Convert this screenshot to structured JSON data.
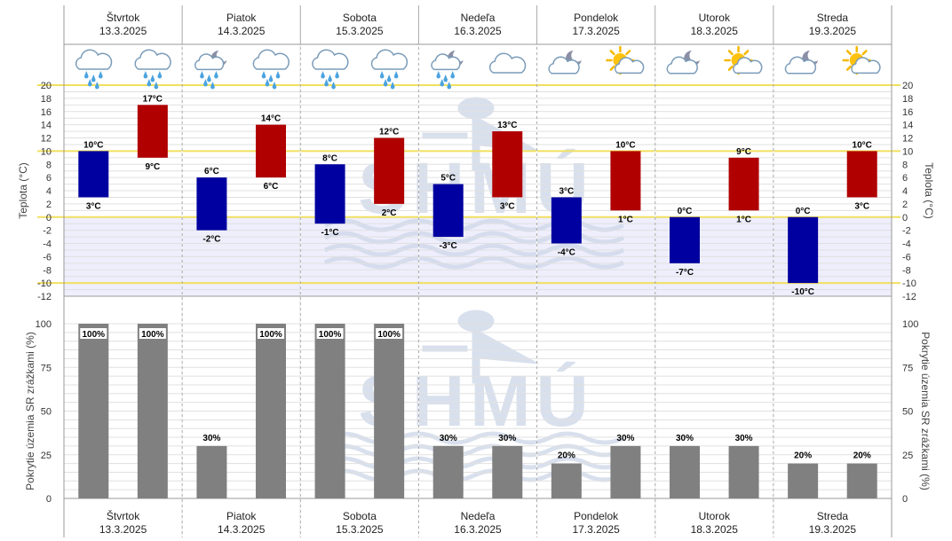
{
  "days": [
    {
      "name": "Štvrtok",
      "date": "13.3.2025",
      "icons": [
        "rain-cloud-icon",
        "rain-cloud-icon"
      ]
    },
    {
      "name": "Piatok",
      "date": "14.3.2025",
      "icons": [
        "moon-cloud-rain-icon",
        "rain-cloud-icon"
      ]
    },
    {
      "name": "Sobota",
      "date": "15.3.2025",
      "icons": [
        "rain-cloud-icon",
        "rain-cloud-icon"
      ]
    },
    {
      "name": "Nedeľa",
      "date": "16.3.2025",
      "icons": [
        "moon-cloud-rain-icon",
        "cloud-icon"
      ]
    },
    {
      "name": "Pondelok",
      "date": "17.3.2025",
      "icons": [
        "moon-cloud-icon",
        "sun-cloud-icon"
      ]
    },
    {
      "name": "Utorok",
      "date": "18.3.2025",
      "icons": [
        "moon-cloud-icon",
        "sun-cloud-icon"
      ]
    },
    {
      "name": "Streda",
      "date": "19.3.2025",
      "icons": [
        "moon-cloud-icon",
        "sun-cloud-icon"
      ]
    }
  ],
  "watermark": "SHMÚ",
  "colors": {
    "night_bar": "#0000a0",
    "day_bar": "#b00000",
    "coverage_bar": "#808080",
    "highlight_line": "#f0e060",
    "negative_band": "#eeeefc",
    "watermark": "#cdd6e8",
    "grid": "#e0e0e0"
  },
  "chart_data": [
    {
      "type": "bar",
      "ylabel_left": "Teplota (°C)",
      "ylabel_right": "Teplota (°C)",
      "ylim": [
        -12,
        20
      ],
      "yticks": [
        20,
        18,
        16,
        14,
        12,
        10,
        8,
        6,
        4,
        2,
        0,
        -2,
        -4,
        -6,
        -8,
        -10,
        -12
      ],
      "highlight_lines": [
        20,
        10,
        0,
        -10
      ],
      "unit_suffix": "°C",
      "series": [
        {
          "name": "",
          "color_key": "night_bar",
          "max": [
            10,
            6,
            8,
            5,
            3,
            0,
            0
          ],
          "min": [
            3,
            -2,
            -1,
            -3,
            -4,
            -7,
            -10
          ]
        },
        {
          "name": "",
          "color_key": "day_bar",
          "max": [
            17,
            14,
            12,
            13,
            10,
            9,
            10
          ],
          "min": [
            9,
            6,
            2,
            3,
            1,
            1,
            3
          ]
        }
      ]
    },
    {
      "type": "bar",
      "ylabel_left": "Pokrytie územia SR zrážkami (%)",
      "ylabel_right": "Pokrytie územia SR zrážkami (%)",
      "ylim": [
        0,
        100
      ],
      "yticks": [
        100,
        75,
        50,
        25,
        0
      ],
      "unit_suffix": "%",
      "series": [
        {
          "name": "",
          "values": [
            100,
            30,
            100,
            30,
            20,
            30,
            20
          ]
        },
        {
          "name": "",
          "values": [
            100,
            100,
            100,
            30,
            30,
            30,
            20
          ]
        }
      ]
    }
  ]
}
